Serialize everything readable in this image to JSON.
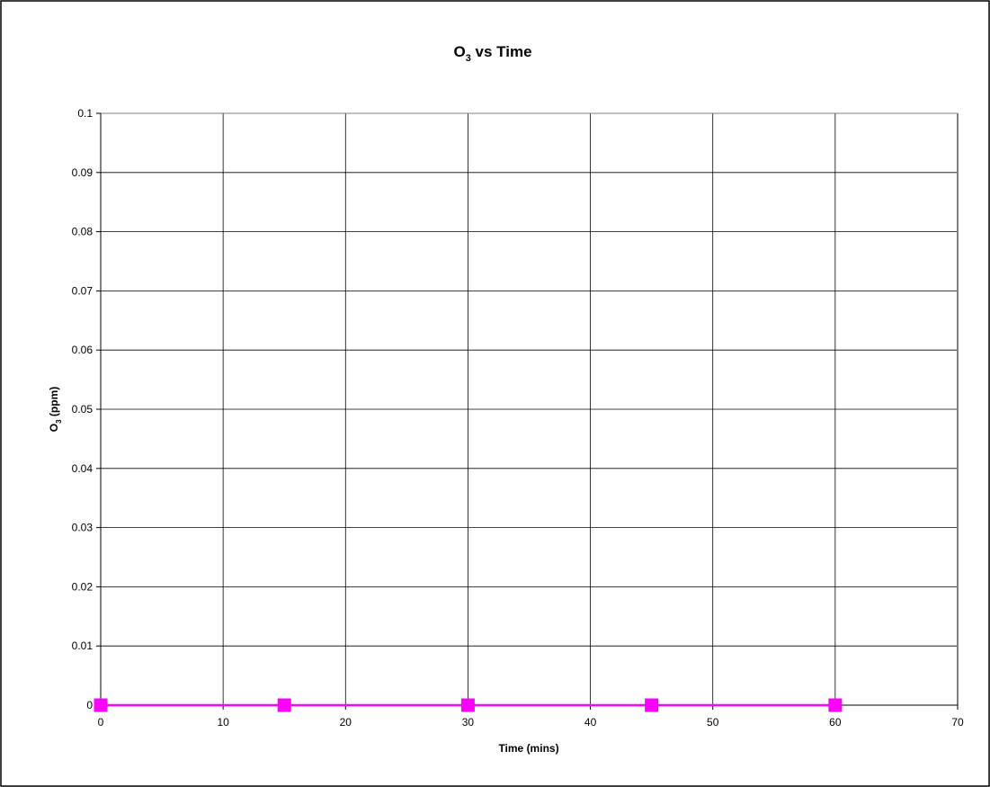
{
  "chart_data": {
    "type": "line",
    "title": {
      "main": "O",
      "subscript": "3",
      "rest": " vs Time"
    },
    "xlabel": "Time (mins)",
    "ylabel": {
      "main": "O",
      "subscript": "3",
      "rest": " (ppm)"
    },
    "xlim": [
      0,
      70
    ],
    "ylim": [
      0,
      0.1
    ],
    "x_ticks": [
      "0",
      "10",
      "20",
      "30",
      "40",
      "50",
      "60",
      "70"
    ],
    "y_ticks": [
      "0",
      "0.01",
      "0.02",
      "0.03",
      "0.04",
      "0.05",
      "0.06",
      "0.07",
      "0.08",
      "0.09",
      "0.1"
    ],
    "grid": true,
    "legend": "none",
    "series": [
      {
        "color": "#ff00ff",
        "marker": "square",
        "x": [
          0,
          15,
          30,
          45,
          60
        ],
        "y": [
          0,
          0,
          0,
          0,
          0
        ]
      }
    ]
  }
}
